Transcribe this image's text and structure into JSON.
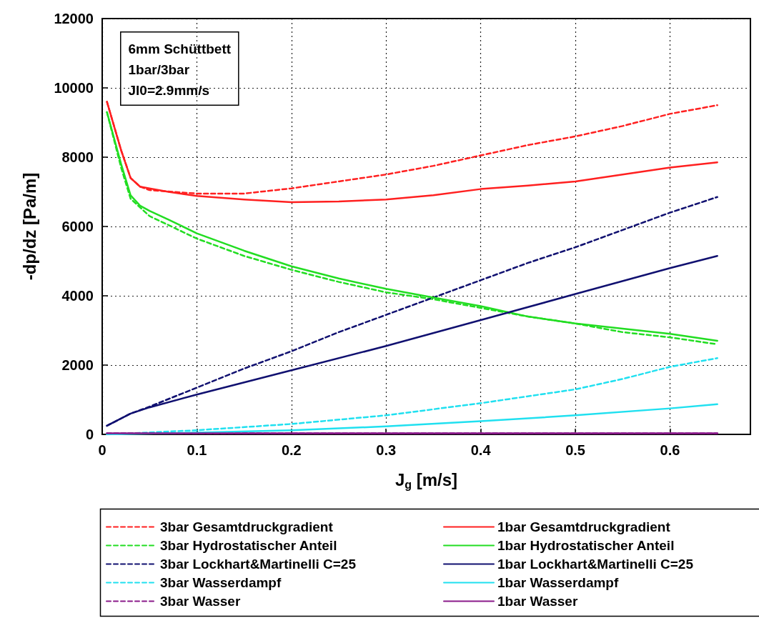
{
  "chart_data": {
    "type": "line",
    "xlabel": "J$_{g}$ [m/s]",
    "ylabel": "-dp/dz [Pa/m]",
    "annotations": [
      "6mm Schüttbett\n1bar/3bar\nJl0=2.9mm/s"
    ],
    "xlim": [
      0,
      0.685
    ],
    "xticks": [
      0,
      0.1,
      0.2,
      0.3,
      0.4,
      0.5,
      0.6
    ],
    "ylim": [
      0,
      12000
    ],
    "yticks": [
      0,
      2000,
      4000,
      6000,
      8000,
      10000,
      12000
    ],
    "grid": true,
    "legend": "bottom",
    "marker": "none",
    "series": [
      {
        "name": "3bar Gesamtdruckgradient",
        "color": "#ff2020",
        "line_style": "dashed",
        "x": [
          0.005,
          0.02,
          0.03,
          0.04,
          0.05,
          0.1,
          0.15,
          0.2,
          0.25,
          0.3,
          0.35,
          0.4,
          0.45,
          0.5,
          0.55,
          0.6,
          0.65
        ],
        "values": [
          9600,
          8200,
          7400,
          7150,
          7050,
          6950,
          6950,
          7100,
          7300,
          7500,
          7750,
          8050,
          8350,
          8600,
          8900,
          9250,
          9500
        ]
      },
      {
        "name": "3bar Hydrostatischer Anteil",
        "color": "#22dd22",
        "line_style": "dashed",
        "x": [
          0.005,
          0.02,
          0.03,
          0.05,
          0.1,
          0.15,
          0.2,
          0.25,
          0.3,
          0.35,
          0.4,
          0.45,
          0.5,
          0.55,
          0.6,
          0.65
        ],
        "values": [
          9300,
          7700,
          6800,
          6300,
          5650,
          5150,
          4750,
          4400,
          4100,
          3900,
          3650,
          3400,
          3200,
          2950,
          2800,
          2600
        ]
      },
      {
        "name": "3bar Lockhart&Martinelli C=25",
        "color": "#101070",
        "line_style": "dashed",
        "x": [
          0.005,
          0.03,
          0.05,
          0.1,
          0.15,
          0.2,
          0.25,
          0.3,
          0.35,
          0.4,
          0.45,
          0.5,
          0.55,
          0.6,
          0.65
        ],
        "values": [
          250,
          600,
          800,
          1350,
          1900,
          2400,
          2950,
          3450,
          3950,
          4450,
          4950,
          5400,
          5900,
          6400,
          6850
        ]
      },
      {
        "name": "3bar Wasserdampf",
        "color": "#20e0f0",
        "line_style": "dashed",
        "x": [
          0.005,
          0.1,
          0.2,
          0.3,
          0.4,
          0.5,
          0.55,
          0.6,
          0.65
        ],
        "values": [
          0,
          120,
          300,
          550,
          900,
          1300,
          1600,
          1950,
          2200
        ]
      },
      {
        "name": "3bar Wasser",
        "color": "#8a1a8a",
        "line_style": "dashed",
        "x": [
          0.005,
          0.65
        ],
        "values": [
          30,
          30
        ]
      },
      {
        "name": "1bar Gesamtdruckgradient",
        "color": "#ff2020",
        "line_style": "solid",
        "x": [
          0.005,
          0.02,
          0.03,
          0.04,
          0.05,
          0.07,
          0.1,
          0.15,
          0.2,
          0.25,
          0.3,
          0.35,
          0.4,
          0.45,
          0.5,
          0.55,
          0.6,
          0.65
        ],
        "values": [
          9600,
          8200,
          7400,
          7150,
          7100,
          7000,
          6880,
          6780,
          6700,
          6720,
          6780,
          6900,
          7080,
          7180,
          7300,
          7500,
          7700,
          7850
        ]
      },
      {
        "name": "1bar Hydrostatischer Anteil",
        "color": "#22dd22",
        "line_style": "solid",
        "x": [
          0.005,
          0.02,
          0.03,
          0.04,
          0.05,
          0.07,
          0.1,
          0.15,
          0.2,
          0.25,
          0.3,
          0.35,
          0.4,
          0.45,
          0.5,
          0.55,
          0.6,
          0.65
        ],
        "values": [
          9300,
          7800,
          6900,
          6600,
          6450,
          6200,
          5800,
          5300,
          4850,
          4500,
          4200,
          3950,
          3700,
          3400,
          3200,
          3050,
          2900,
          2700
        ]
      },
      {
        "name": "1bar Lockhart&Martinelli C=25",
        "color": "#101070",
        "line_style": "solid",
        "x": [
          0.005,
          0.03,
          0.05,
          0.1,
          0.2,
          0.3,
          0.4,
          0.5,
          0.6,
          0.65
        ],
        "values": [
          250,
          600,
          780,
          1150,
          1850,
          2550,
          3300,
          4050,
          4800,
          5150
        ]
      },
      {
        "name": "1bar Wasserdampf",
        "color": "#20e0f0",
        "line_style": "solid",
        "x": [
          0.005,
          0.1,
          0.2,
          0.3,
          0.4,
          0.5,
          0.6,
          0.65
        ],
        "values": [
          0,
          50,
          120,
          230,
          380,
          550,
          750,
          870
        ]
      },
      {
        "name": "1bar Wasser",
        "color": "#8a1a8a",
        "line_style": "solid",
        "x": [
          0.005,
          0.65
        ],
        "values": [
          30,
          30
        ]
      }
    ]
  }
}
